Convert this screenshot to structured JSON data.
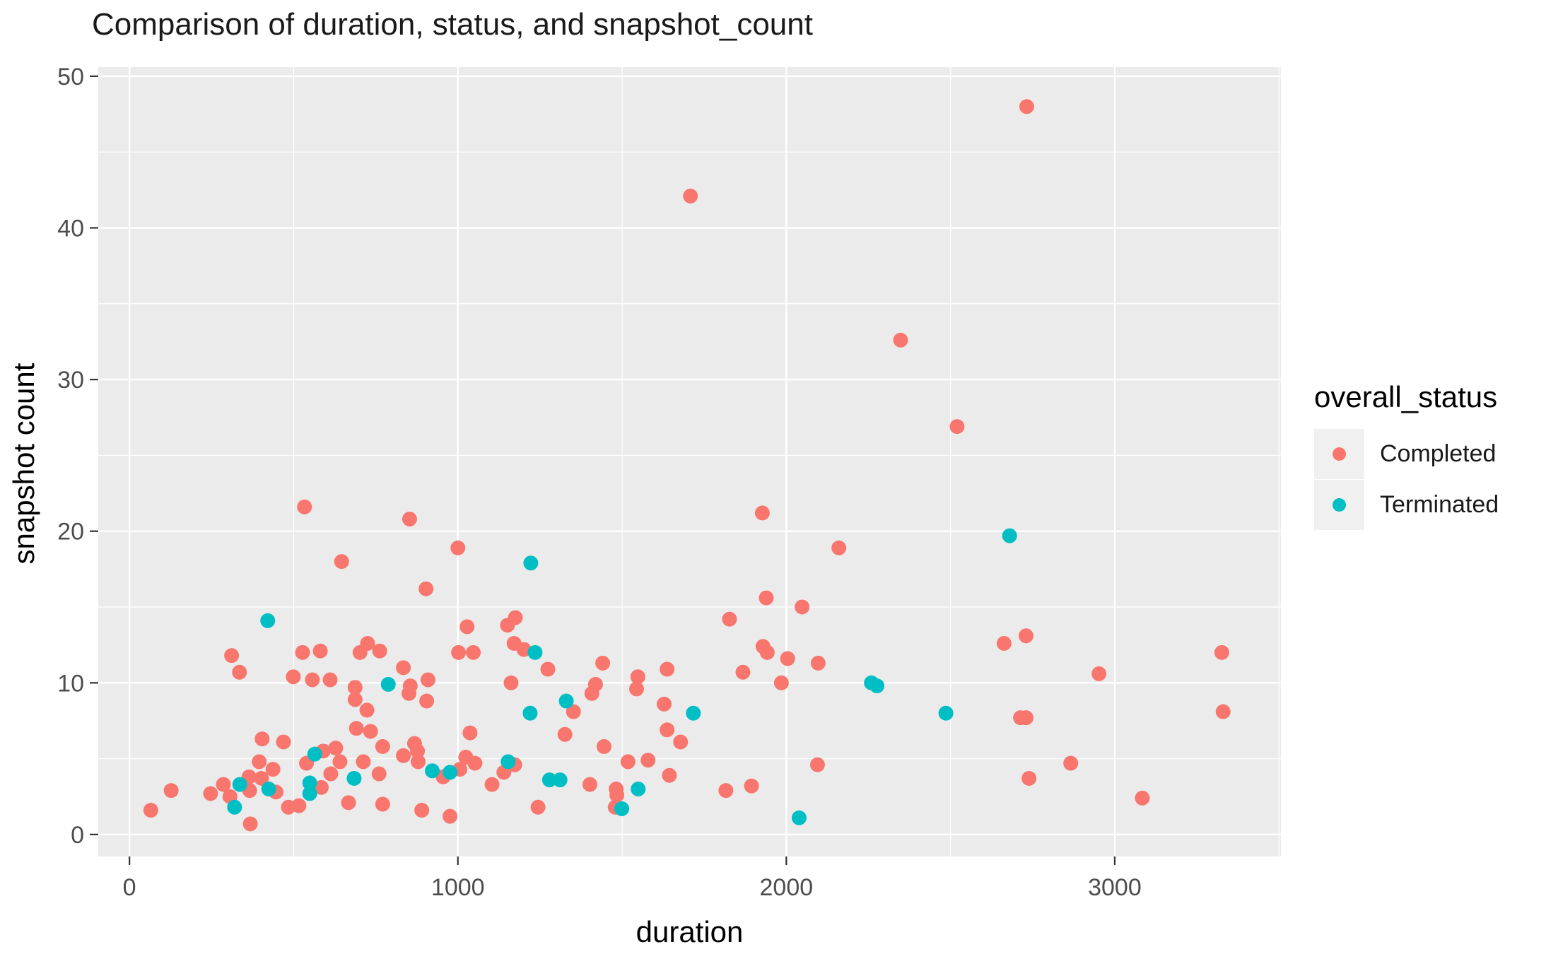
{
  "chart_data": {
    "type": "scatter",
    "title": "Comparison of duration, status, and snapshot_count",
    "xlabel": "duration",
    "ylabel": "snapshot count",
    "x_ticks": [
      0,
      1000,
      2000,
      3000
    ],
    "x_minor_ticks": [
      500,
      1500,
      2500,
      3500
    ],
    "y_ticks": [
      0,
      10,
      20,
      30,
      40,
      50
    ],
    "y_minor_ticks": [
      5,
      15,
      25,
      35,
      45
    ],
    "xlim": [
      -95,
      3506
    ],
    "ylim": [
      -1.45,
      50.6
    ],
    "grid": "white major and minor gridlines on gray panel",
    "legend": {
      "title": "overall_status",
      "position": "right",
      "items": [
        {
          "label": "Completed",
          "color": "#F8766D"
        },
        {
          "label": "Terminated",
          "color": "#00BFC4"
        }
      ]
    },
    "colors": {
      "panel_bg": "#EBEBEB",
      "grid": "#FFFFFF",
      "tick_text": "#4D4D4D",
      "tick_mark": "#333333",
      "axis_text": "#000000",
      "legend_key_bg": "#F0F0F0",
      "completed": "#F8766D",
      "terminated": "#00BFC4"
    },
    "point_radius_px": 10.5,
    "series": [
      {
        "name": "Completed",
        "color": "#F8766D",
        "points": [
          [
            65,
            1.6
          ],
          [
            127,
            2.9
          ],
          [
            247,
            2.7
          ],
          [
            286,
            3.3
          ],
          [
            306,
            2.5
          ],
          [
            311,
            11.8
          ],
          [
            335,
            10.7
          ],
          [
            364,
            3.8
          ],
          [
            366,
            2.9
          ],
          [
            368,
            0.7
          ],
          [
            395,
            4.8
          ],
          [
            402,
            3.7
          ],
          [
            404,
            6.3
          ],
          [
            437,
            4.3
          ],
          [
            446,
            2.8
          ],
          [
            469,
            6.1
          ],
          [
            484,
            1.8
          ],
          [
            499,
            10.4
          ],
          [
            516,
            1.9
          ],
          [
            527,
            12.0
          ],
          [
            533,
            21.6
          ],
          [
            539,
            4.7
          ],
          [
            557,
            10.2
          ],
          [
            581,
            12.1
          ],
          [
            584,
            3.1
          ],
          [
            590,
            5.5
          ],
          [
            611,
            10.2
          ],
          [
            613,
            4.0
          ],
          [
            628,
            5.7
          ],
          [
            641,
            4.8
          ],
          [
            646,
            18.0
          ],
          [
            667,
            2.1
          ],
          [
            687,
            9.7
          ],
          [
            687,
            8.9
          ],
          [
            691,
            7.0
          ],
          [
            702,
            12.0
          ],
          [
            712,
            4.8
          ],
          [
            723,
            8.2
          ],
          [
            725,
            12.6
          ],
          [
            734,
            6.8
          ],
          [
            760,
            4.0
          ],
          [
            762,
            12.1
          ],
          [
            771,
            2.0
          ],
          [
            771,
            5.8
          ],
          [
            834,
            5.2
          ],
          [
            834,
            11.0
          ],
          [
            851,
            9.3
          ],
          [
            853,
            20.8
          ],
          [
            855,
            9.8
          ],
          [
            868,
            6.0
          ],
          [
            877,
            5.5
          ],
          [
            879,
            4.8
          ],
          [
            890,
            1.6
          ],
          [
            903,
            16.2
          ],
          [
            905,
            8.8
          ],
          [
            909,
            10.2
          ],
          [
            955,
            3.8
          ],
          [
            976,
            1.2
          ],
          [
            1000,
            18.9
          ],
          [
            1002,
            12.0
          ],
          [
            1006,
            4.3
          ],
          [
            1024,
            5.1
          ],
          [
            1028,
            13.7
          ],
          [
            1037,
            6.7
          ],
          [
            1047,
            12.0
          ],
          [
            1052,
            4.7
          ],
          [
            1104,
            3.3
          ],
          [
            1140,
            4.1
          ],
          [
            1151,
            13.8
          ],
          [
            1162,
            10.0
          ],
          [
            1171,
            12.6
          ],
          [
            1173,
            4.6
          ],
          [
            1175,
            14.3
          ],
          [
            1201,
            12.2
          ],
          [
            1244,
            1.8
          ],
          [
            1274,
            10.9
          ],
          [
            1326,
            6.6
          ],
          [
            1352,
            8.1
          ],
          [
            1402,
            3.3
          ],
          [
            1408,
            9.3
          ],
          [
            1419,
            9.9
          ],
          [
            1441,
            11.3
          ],
          [
            1445,
            5.8
          ],
          [
            1479,
            1.8
          ],
          [
            1482,
            3.0
          ],
          [
            1484,
            2.6
          ],
          [
            1518,
            4.8
          ],
          [
            1544,
            9.6
          ],
          [
            1548,
            10.4
          ],
          [
            1579,
            4.9
          ],
          [
            1628,
            8.6
          ],
          [
            1637,
            10.9
          ],
          [
            1637,
            6.9
          ],
          [
            1644,
            3.9
          ],
          [
            1678,
            6.1
          ],
          [
            1708,
            42.1
          ],
          [
            1816,
            2.9
          ],
          [
            1827,
            14.2
          ],
          [
            1868,
            10.7
          ],
          [
            1894,
            3.2
          ],
          [
            1927,
            21.2
          ],
          [
            1929,
            12.4
          ],
          [
            1939,
            15.6
          ],
          [
            1942,
            12.0
          ],
          [
            1985,
            10.0
          ],
          [
            2004,
            11.6
          ],
          [
            2048,
            15.0
          ],
          [
            2095,
            4.6
          ],
          [
            2097,
            11.3
          ],
          [
            2160,
            18.9
          ],
          [
            2348,
            32.6
          ],
          [
            2520,
            26.9
          ],
          [
            2663,
            12.6
          ],
          [
            2713,
            7.7
          ],
          [
            2730,
            13.1
          ],
          [
            2730,
            7.7
          ],
          [
            2732,
            48.0
          ],
          [
            2739,
            3.7
          ],
          [
            2866,
            4.7
          ],
          [
            2952,
            10.6
          ],
          [
            3084,
            2.4
          ],
          [
            3326,
            12.0
          ],
          [
            3330,
            8.1
          ]
        ]
      },
      {
        "name": "Terminated",
        "color": "#00BFC4",
        "points": [
          [
            320,
            1.8
          ],
          [
            336,
            3.3
          ],
          [
            421,
            14.1
          ],
          [
            424,
            3.0
          ],
          [
            549,
            3.4
          ],
          [
            549,
            2.7
          ],
          [
            564,
            5.3
          ],
          [
            684,
            3.7
          ],
          [
            788,
            9.9
          ],
          [
            922,
            4.2
          ],
          [
            976,
            4.1
          ],
          [
            1153,
            4.8
          ],
          [
            1220,
            8.0
          ],
          [
            1222,
            17.9
          ],
          [
            1235,
            12.0
          ],
          [
            1279,
            3.6
          ],
          [
            1311,
            3.6
          ],
          [
            1330,
            8.8
          ],
          [
            1499,
            1.7
          ],
          [
            1549,
            3.0
          ],
          [
            1717,
            8.0
          ],
          [
            2039,
            1.1
          ],
          [
            2259,
            10.0
          ],
          [
            2276,
            9.8
          ],
          [
            2486,
            8.0
          ],
          [
            2680,
            19.7
          ]
        ]
      }
    ]
  }
}
